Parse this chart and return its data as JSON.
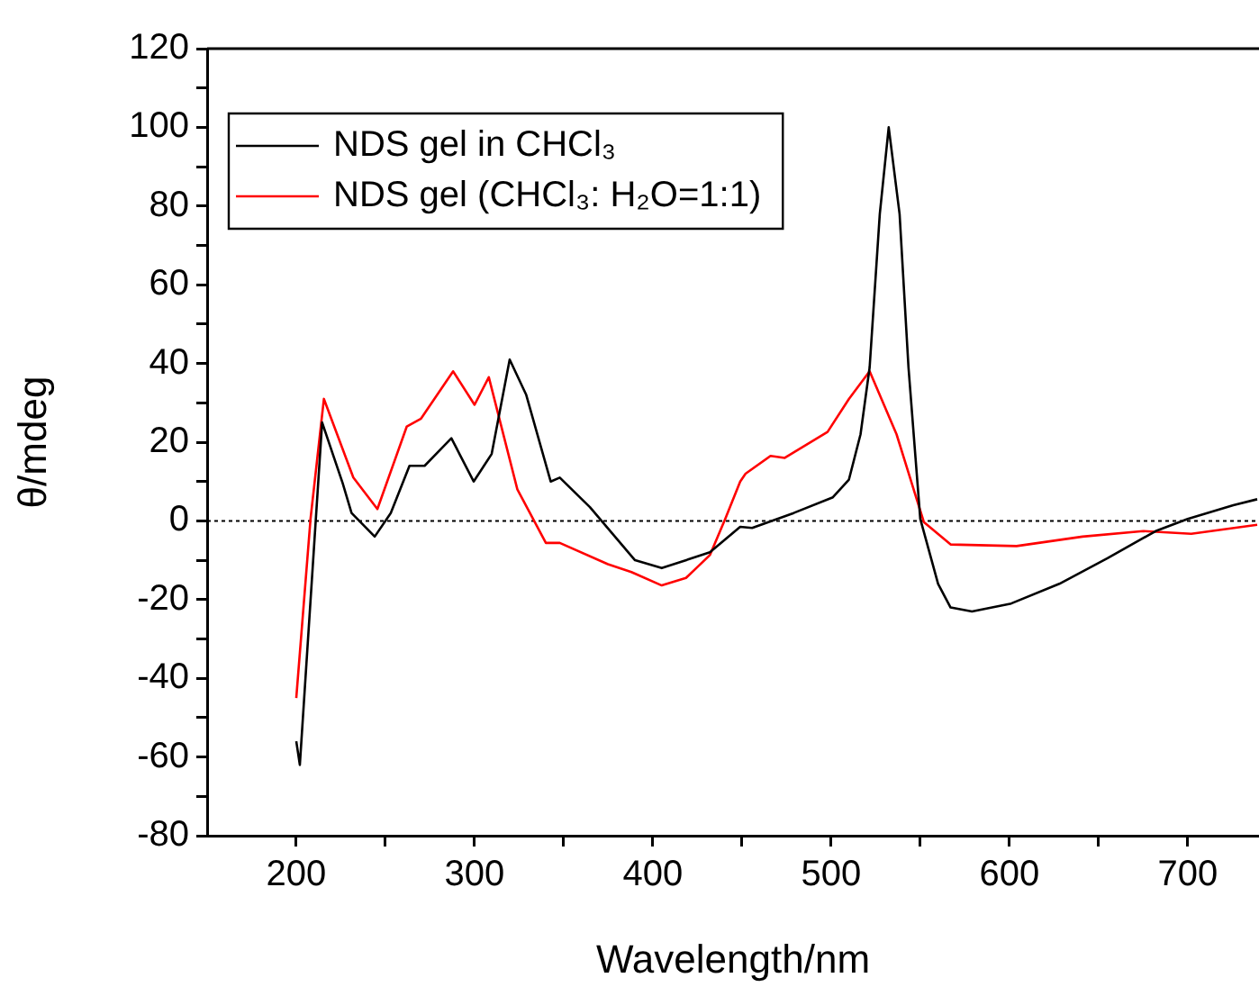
{
  "chart_data": {
    "type": "line",
    "xlabel": "Wavelength/nm",
    "ylabel": "θ/mdeg",
    "xlim": [
      150,
      740
    ],
    "ylim": [
      -80,
      120
    ],
    "xticks": [
      200,
      {
        "value": 250,
        "label": null
      },
      300,
      {
        "value": 350,
        "label": null
      },
      400,
      {
        "value": 450,
        "label": null
      },
      500,
      {
        "value": 550,
        "label": null
      },
      600,
      {
        "value": 650,
        "label": null
      },
      700
    ],
    "yticks": [
      -80,
      {
        "value": -70,
        "label": null
      },
      -60,
      {
        "value": -50,
        "label": null
      },
      -40,
      {
        "value": -30,
        "label": null
      },
      -20,
      {
        "value": -10,
        "label": null
      },
      0,
      {
        "value": 10,
        "label": null
      },
      20,
      {
        "value": 30,
        "label": null
      },
      40,
      {
        "value": 50,
        "label": null
      },
      60,
      {
        "value": 70,
        "label": null
      },
      80,
      {
        "value": 90,
        "label": null
      },
      100,
      {
        "value": 110,
        "label": null
      },
      120
    ],
    "grid": false,
    "legend": "top left",
    "marker": "none",
    "line_style": "solid",
    "ref_lines": [
      {
        "axis": "y",
        "value": 0,
        "color": "#000000",
        "line_style": "dotted"
      }
    ],
    "series": [
      {
        "name": "NDS gel in CHCl₃",
        "color": "#000000",
        "x": [
          200,
          202,
          214.5,
          226,
          231,
          244,
          253,
          263.5,
          272,
          287,
          299.5,
          309.6,
          319.7,
          329,
          342.7,
          347.8,
          364.7,
          390,
          405,
          432,
          449,
          455.7,
          479,
          501,
          510,
          516.5,
          521.6,
          527.3,
          532.3,
          538.4,
          543.4,
          550,
          560,
          567,
          579,
          601,
          628,
          655,
          682,
          700,
          725.6,
          739
        ],
        "values": [
          -56,
          -62,
          25,
          9.6,
          2,
          -4,
          2,
          14,
          14,
          21,
          10,
          17,
          41,
          32,
          10,
          11,
          3.5,
          -10,
          -12,
          -8,
          -1.5,
          -1.8,
          2,
          6,
          10.5,
          22,
          39,
          78,
          100,
          78,
          39,
          0.5,
          -16,
          -22,
          -23,
          -21,
          -16,
          -9.5,
          -2.6,
          0.5,
          4,
          5.5
        ]
      },
      {
        "name": "NDS gel (CHCl₃: H₂O=1:1)",
        "color": "#ff0000",
        "x": [
          200,
          208,
          215.5,
          232,
          245.5,
          262,
          270,
          288,
          300,
          308,
          324,
          340,
          347.8,
          374.8,
          388,
          405,
          418.6,
          432,
          440.6,
          449,
          452,
          466,
          474,
          498,
          510,
          521.6,
          536.7,
          552,
          567,
          604,
          641,
          675,
          702,
          739
        ],
        "values": [
          -45,
          0.5,
          31,
          11,
          3,
          24,
          26,
          38,
          29.5,
          36.5,
          8,
          -5.6,
          -5.6,
          -11,
          -13,
          -16.4,
          -14.5,
          -8.7,
          0.5,
          10,
          12,
          16.5,
          16,
          22.6,
          31,
          38,
          22,
          -0.3,
          -6,
          -6.4,
          -4,
          -2.6,
          -3.3,
          -1
        ]
      }
    ]
  }
}
